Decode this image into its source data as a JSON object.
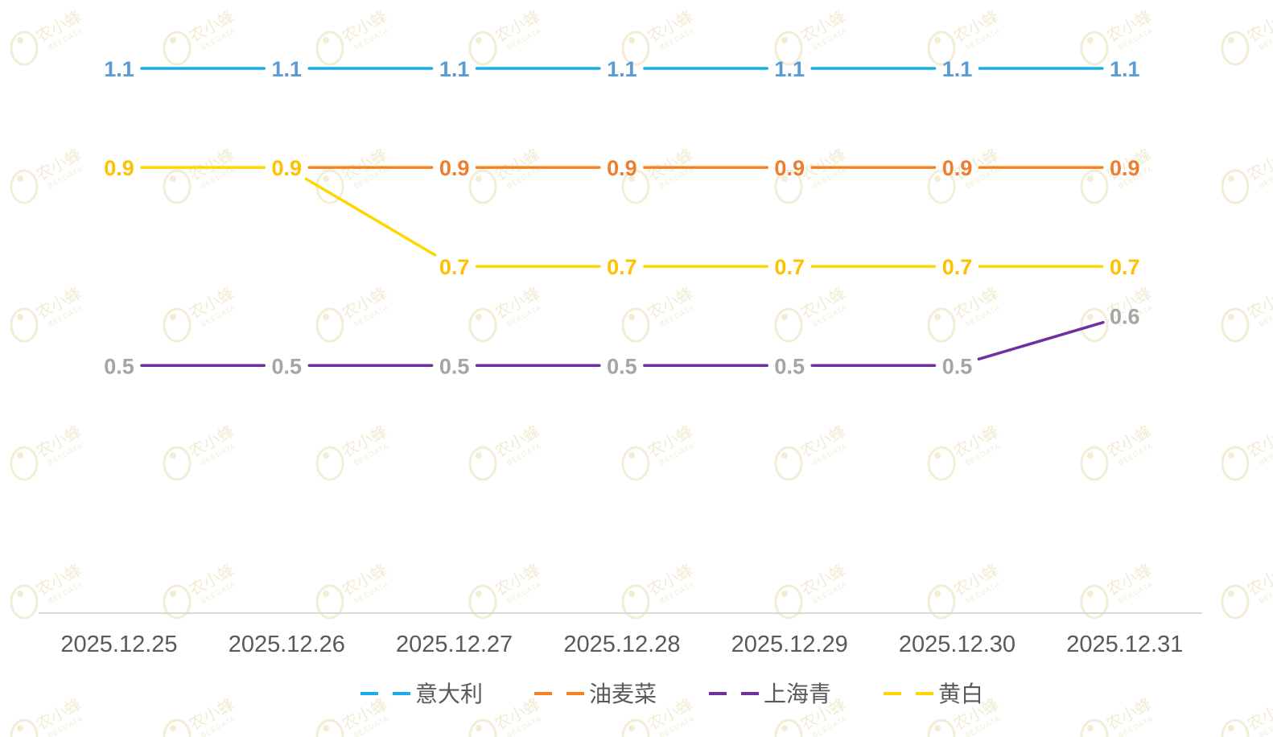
{
  "watermark": {
    "text": "农小蜂",
    "subtext": "BEEDATA"
  },
  "chart_data": {
    "type": "line",
    "title": "",
    "xlabel": "",
    "ylabel": "",
    "categories": [
      "2025.12.25",
      "2025.12.26",
      "2025.12.27",
      "2025.12.28",
      "2025.12.29",
      "2025.12.30",
      "2025.12.31"
    ],
    "ylim": [
      0,
      1.2
    ],
    "grid": false,
    "legend_position": "bottom",
    "series": [
      {
        "name": "意大利",
        "color": "#1AABE9",
        "label_color": "#5B9BD5",
        "values": [
          1.1,
          1.1,
          1.1,
          1.1,
          1.1,
          1.1,
          1.1
        ],
        "labels": [
          "1.1",
          "1.1",
          "1.1",
          "1.1",
          "1.1",
          "1.1",
          "1.1"
        ]
      },
      {
        "name": "油麦菜",
        "color": "#F58220",
        "label_color": "#ED7D31",
        "values": [
          null,
          0.9,
          0.9,
          0.9,
          0.9,
          0.9,
          0.9
        ],
        "labels": [
          null,
          null,
          "0.9",
          "0.9",
          "0.9",
          "0.9",
          "0.9"
        ]
      },
      {
        "name": "上海青",
        "color": "#7030A0",
        "label_color": "#A5A5A5",
        "values": [
          0.5,
          0.5,
          0.5,
          0.5,
          0.5,
          0.5,
          0.6
        ],
        "labels": [
          "0.5",
          "0.5",
          "0.5",
          "0.5",
          "0.5",
          "0.5",
          "0.6"
        ]
      },
      {
        "name": "黄白",
        "color": "#FFD700",
        "label_color": "#FFC000",
        "values": [
          0.9,
          0.9,
          0.7,
          0.7,
          0.7,
          0.7,
          0.7
        ],
        "labels": [
          "0.9",
          "0.9",
          "0.7",
          "0.7",
          "0.7",
          "0.7",
          "0.7"
        ]
      }
    ]
  }
}
